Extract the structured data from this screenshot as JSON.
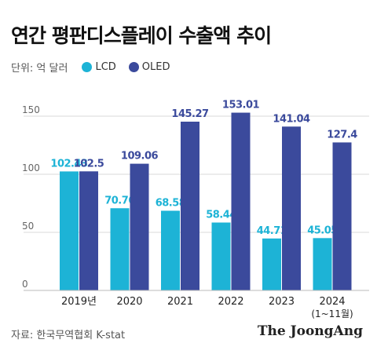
{
  "title": "연간 평판디스플레이 수출액 추이",
  "unit_label": "단위: 억 달러",
  "legend": [
    {
      "label": "LCD",
      "color": "#1db3d6"
    },
    {
      "label": "OLED",
      "color": "#3b4a9c"
    }
  ],
  "source": "자료: 한국무역협회 K-stat",
  "brand": "The JoongAng",
  "chart_data": {
    "type": "bar",
    "categories": [
      "2019년",
      "2020",
      "2021",
      "2022",
      "2023",
      "2024"
    ],
    "category_notes": [
      "",
      "",
      "",
      "",
      "",
      "(1~11월)"
    ],
    "series": [
      {
        "name": "LCD",
        "values": [
          102.43,
          70.76,
          68.58,
          58.44,
          44.71,
          45.05
        ],
        "labels": [
          "102.43",
          "70.76",
          "68.58",
          "58.44",
          "44.71",
          "45.05"
        ],
        "color": "#1db3d6"
      },
      {
        "name": "OLED",
        "values": [
          102.5,
          109.06,
          145.27,
          153.01,
          141.04,
          127.4
        ],
        "labels": [
          "102.5",
          "109.06",
          "145.27",
          "153.01",
          "141.04",
          "127.4"
        ],
        "color": "#3b4a9c"
      }
    ],
    "yticks": [
      0,
      50,
      100,
      150
    ],
    "ylim": [
      0,
      160
    ],
    "grid": true
  }
}
